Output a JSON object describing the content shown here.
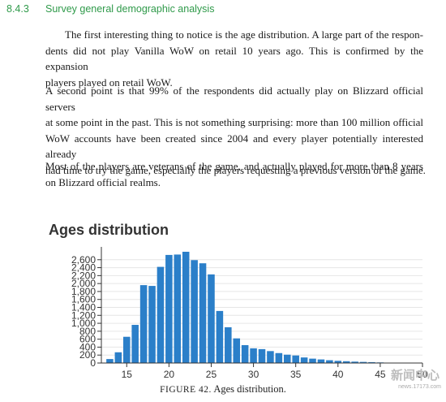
{
  "section": {
    "number": "8.4.3",
    "title": "Survey general demographic analysis"
  },
  "paragraphs": [
    {
      "lines": [
        "The first interesting thing to notice is the age distribution.  A large part of the respon-",
        "dents did not play Vanilla WoW on retail 10 years ago. This is confirmed by the expansion",
        "players played on retail WoW."
      ]
    },
    {
      "lines": [
        "A second point is that 99% of the respondents did actually play on Blizzard official servers",
        "at some point in the past.  This is not something surprising: more than 100 million official",
        "WoW accounts have been created since 2004 and every player potentially interested already",
        "had time to try the game, especially the players requesting a previous version of the game."
      ]
    },
    {
      "lines": [
        "Most of the players are veterans of the game, and actually played for more than 8 years",
        "on Blizzard official realms."
      ]
    }
  ],
  "chart_data": {
    "type": "bar",
    "title": "Ages distribution",
    "xlabel": "",
    "ylabel": "",
    "xlim": [
      12,
      50
    ],
    "ylim": [
      0,
      2800
    ],
    "x_ticks": [
      15,
      20,
      25,
      30,
      35,
      40,
      45,
      50
    ],
    "y_ticks": [
      0,
      200,
      400,
      600,
      800,
      1000,
      1200,
      1400,
      1600,
      1800,
      2000,
      2200,
      2400,
      2600
    ],
    "y_tick_labels": [
      "0",
      "200",
      "400",
      "600",
      "800",
      "1,000",
      "1,200",
      "1,400",
      "1,600",
      "1,800",
      "2,000",
      "2,200",
      "2,400",
      "2,600"
    ],
    "x": [
      13,
      14,
      15,
      16,
      17,
      18,
      19,
      20,
      21,
      22,
      23,
      24,
      25,
      26,
      27,
      28,
      29,
      30,
      31,
      32,
      33,
      34,
      35,
      36,
      37,
      38,
      39,
      40,
      41,
      42,
      43,
      44,
      45,
      46
    ],
    "values": [
      100,
      270,
      660,
      960,
      1960,
      1940,
      2420,
      2720,
      2730,
      2800,
      2590,
      2510,
      2230,
      1310,
      900,
      620,
      450,
      370,
      350,
      300,
      250,
      210,
      190,
      140,
      110,
      90,
      70,
      55,
      45,
      35,
      28,
      22,
      15,
      10
    ],
    "bar_color": "#2b7fc9",
    "grid": "horizontal"
  },
  "caption": {
    "tag": "FIGURE 42.",
    "text": "Ages distribution."
  },
  "watermark": {
    "big": "新闻中心",
    "small": "news.17173.com"
  }
}
